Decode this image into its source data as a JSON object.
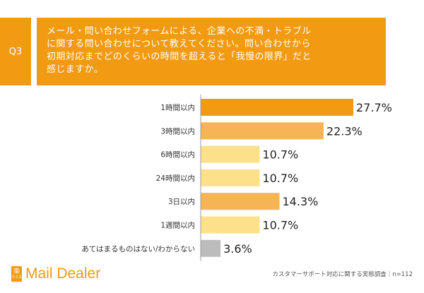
{
  "question": {
    "number": "Q3",
    "lines": [
      "メール・問い合わせフォームによる、企業への不満・トラブル",
      "に関する問い合わせについて教えてください。問い合わせから",
      "初期対応までどのくらいの時間を超えると「我慢の限界」だと",
      "感じますか。"
    ]
  },
  "chart_data": {
    "type": "bar",
    "orientation": "horizontal",
    "categories": [
      "1時間以内",
      "3時間以内",
      "6時間以内",
      "24時間以内",
      "3日以内",
      "1週間以内",
      "あてはまるものはない/わからない"
    ],
    "values": [
      27.7,
      22.3,
      10.7,
      10.7,
      14.3,
      10.7,
      3.6
    ],
    "value_labels": [
      "27.7%",
      "22.3%",
      "10.7%",
      "10.7%",
      "14.3%",
      "10.7%",
      "3.6%"
    ],
    "bar_colors": [
      "#f29a12",
      "#f7b454",
      "#fde08a",
      "#fde08a",
      "#f7b454",
      "#fde08a",
      "#bcbcbc"
    ],
    "xlim": [
      0,
      30
    ],
    "grid": false,
    "legend": "none"
  },
  "footer": {
    "logo_mark_top": "楽",
    "logo_mark_bottom": "ラクス",
    "logo_text": "Mail Dealer",
    "note": "カスタマーサポート対応に関する実態調査｜n=112"
  }
}
